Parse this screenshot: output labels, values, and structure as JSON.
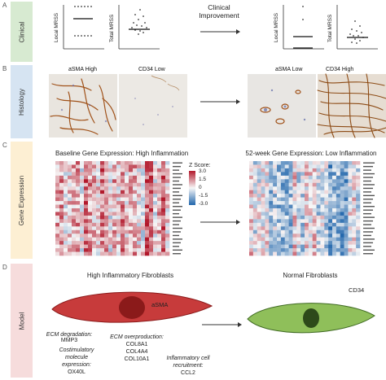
{
  "panels": {
    "a": {
      "letter": "A",
      "label": "Clinical",
      "color": "#d7ead1",
      "center_text_line1": "Clinical",
      "center_text_line2": "Improvement",
      "local_label": "Local MRSS",
      "total_label": "Total MRSS"
    },
    "b": {
      "letter": "B",
      "label": "Histology",
      "color": "#d6e4f2",
      "img1": "aSMA High",
      "img2": "CD34 Low",
      "img3": "aSMA Low",
      "img4": "CD34 High"
    },
    "c": {
      "letter": "C",
      "label": "Gene Expression",
      "color": "#fdefd3",
      "baseline_title": "Baseline Gene Expression: High Inflammation",
      "week52_title": "52-week Gene Expression: Low Inflammation",
      "legend_title": "Z Score:",
      "legend_ticks": [
        "3.0",
        "1.5",
        "0",
        "-1.5",
        "-3.0"
      ]
    },
    "d": {
      "letter": "D",
      "label": "Model",
      "color": "#f6dcdc",
      "high_title": "High Inflammatory Fibroblasts",
      "normal_title": "Normal Fibroblasts",
      "asma": "aSMA",
      "cd34": "CD34",
      "ecm_deg_1": "ECM degradation:",
      "ecm_deg_2": "MMP3",
      "costim_1": "Costimulatory",
      "costim_2": "molecule",
      "costim_3": "expression:",
      "costim_4": "OX40L",
      "ecm_over_1": "ECM overproduction:",
      "ecm_over_2": "COL8A1",
      "ecm_over_3": "COL4A4",
      "ecm_over_4": "COL10A1",
      "infl_1": "Inflammatory cell",
      "infl_2": "recruitment:",
      "infl_3": "CCL2"
    }
  },
  "colors": {
    "red_cell": "#c73b3b",
    "red_nucleus": "#8b1a1a",
    "green_cell": "#8fbf5a",
    "green_nucleus": "#2d4a1a",
    "heat_high": "#b2182b",
    "heat_low": "#2166ac"
  }
}
